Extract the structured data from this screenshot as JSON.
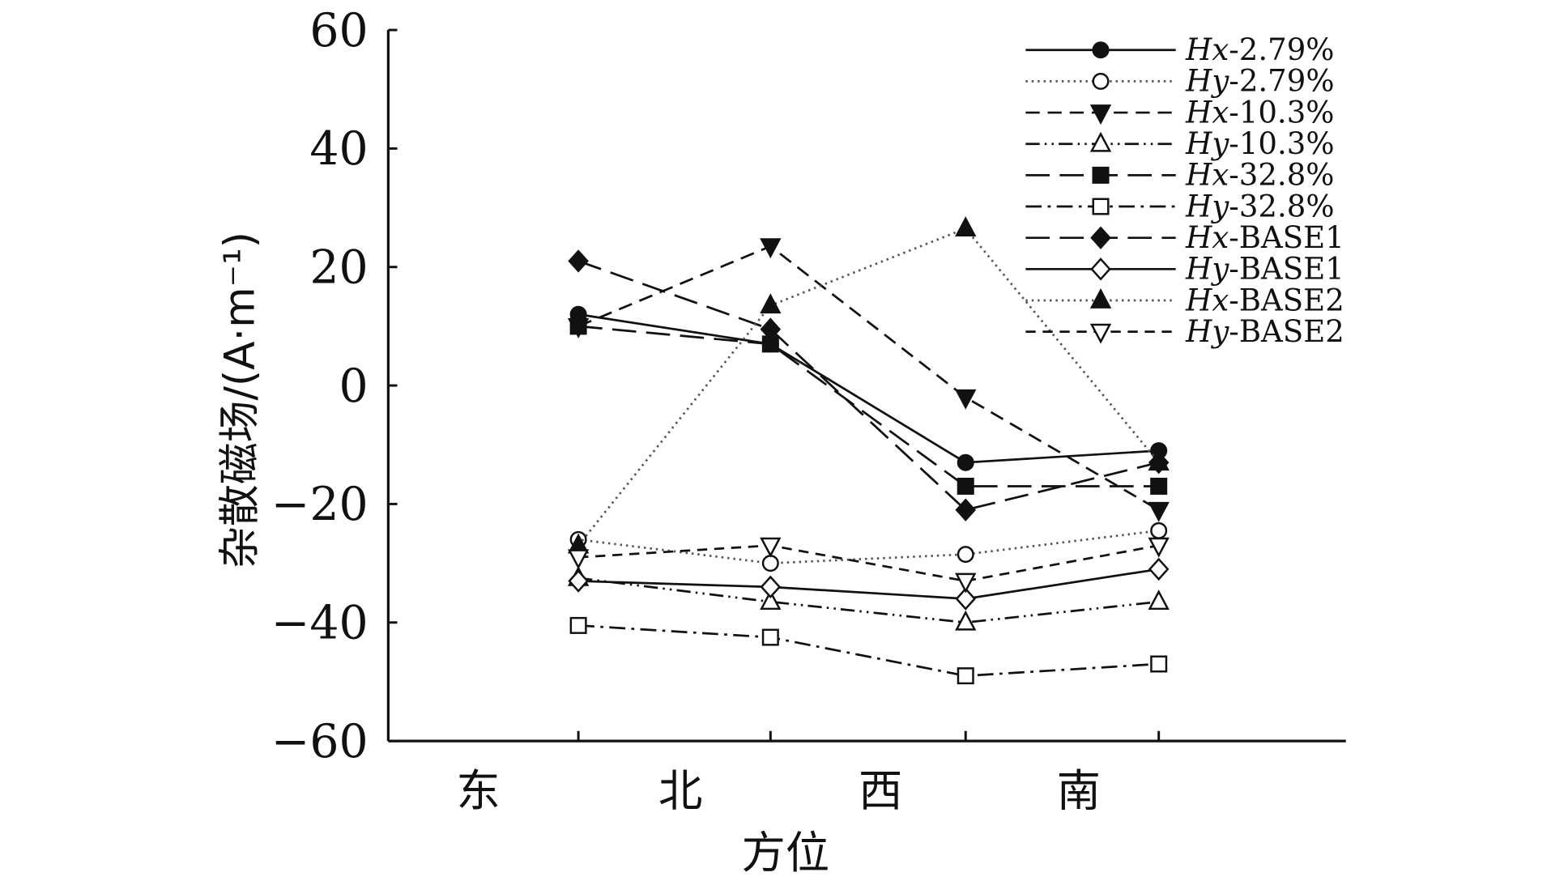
{
  "chart_data": {
    "type": "line",
    "categories": [
      "东",
      "北",
      "西",
      "南"
    ],
    "xlabel": "方位",
    "ylabel": "杂散磁场/(A·m⁻¹)",
    "ylim": [
      -60,
      60
    ],
    "yticks": [
      -60,
      -40,
      -20,
      0,
      20,
      40,
      60
    ],
    "ytick_labels": [
      "−60",
      "−40",
      "−20",
      "0",
      "20",
      "40",
      "60"
    ],
    "grid": false,
    "legend_position": "top-right",
    "series": [
      {
        "name": "Hx-2.79%",
        "marker": "filled-circle",
        "line": "solid",
        "values": [
          12,
          7,
          -13,
          -11
        ]
      },
      {
        "name": "Hy-2.79%",
        "marker": "open-circle",
        "line": "dotted",
        "values": [
          -26,
          -30,
          -28.5,
          -24.5
        ]
      },
      {
        "name": "Hx-10.3%",
        "marker": "filled-triangle-down",
        "line": "dashed",
        "values": [
          10,
          23.5,
          -2,
          -21
        ]
      },
      {
        "name": "Hy-10.3%",
        "marker": "open-triangle-up",
        "line": "dash-dot-dot",
        "values": [
          -32.5,
          -36.5,
          -40,
          -36.5
        ]
      },
      {
        "name": "Hx-32.8%",
        "marker": "filled-square",
        "line": "long-dash",
        "values": [
          10,
          7,
          -17,
          -17
        ]
      },
      {
        "name": "Hy-32.8%",
        "marker": "open-square",
        "line": "dash-dot",
        "values": [
          -40.5,
          -42.5,
          -49,
          -47
        ]
      },
      {
        "name": "Hx-BASE1",
        "marker": "filled-diamond",
        "line": "long-dash",
        "values": [
          21,
          9.5,
          -21,
          -13
        ]
      },
      {
        "name": "Hy-BASE1",
        "marker": "open-diamond",
        "line": "solid",
        "values": [
          -33,
          -34,
          -36,
          -31
        ]
      },
      {
        "name": "Hx-BASE2",
        "marker": "filled-triangle-up",
        "line": "dotted",
        "values": [
          -27,
          13.5,
          26.5,
          -13
        ]
      },
      {
        "name": "Hy-BASE2",
        "marker": "open-triangle-down",
        "line": "short-dash",
        "values": [
          -29,
          -27,
          -33,
          -27
        ]
      }
    ]
  }
}
